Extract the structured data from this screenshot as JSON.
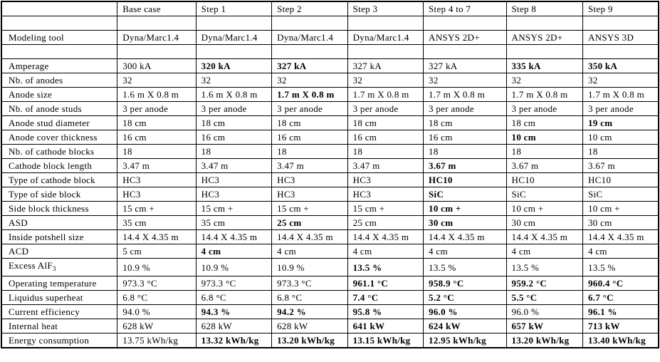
{
  "table": {
    "label_column_header": "",
    "columns": [
      "Base case",
      "Step 1",
      "Step 2",
      "Step 3",
      "Step 4 to 7",
      "Step 8",
      "Step 9"
    ],
    "rows": [
      {
        "type": "spacer",
        "label": "",
        "cells": [
          {
            "t": "",
            "b": false
          },
          {
            "t": "",
            "b": false
          },
          {
            "t": "",
            "b": false
          },
          {
            "t": "",
            "b": false
          },
          {
            "t": "",
            "b": false
          },
          {
            "t": "",
            "b": false
          },
          {
            "t": "",
            "b": false
          }
        ]
      },
      {
        "label": "Modeling tool",
        "cells": [
          {
            "t": "Dyna/Marc1.4",
            "b": false
          },
          {
            "t": "Dyna/Marc1.4",
            "b": false
          },
          {
            "t": "Dyna/Marc1.4",
            "b": false
          },
          {
            "t": "Dyna/Marc1.4",
            "b": false
          },
          {
            "t": "ANSYS 2D+",
            "b": false
          },
          {
            "t": "ANSYS 2D+",
            "b": false
          },
          {
            "t": "ANSYS 3D",
            "b": false
          }
        ]
      },
      {
        "type": "spacer",
        "label": "",
        "cells": [
          {
            "t": "",
            "b": false
          },
          {
            "t": "",
            "b": false
          },
          {
            "t": "",
            "b": false
          },
          {
            "t": "",
            "b": false
          },
          {
            "t": "",
            "b": false
          },
          {
            "t": "",
            "b": false
          },
          {
            "t": "",
            "b": false
          }
        ]
      },
      {
        "label": "Amperage",
        "cells": [
          {
            "t": "300 kA",
            "b": false
          },
          {
            "t": "320 kA",
            "b": true
          },
          {
            "t": "327 kA",
            "b": true
          },
          {
            "t": "327 kA",
            "b": false
          },
          {
            "t": "327 kA",
            "b": false
          },
          {
            "t": "335 kA",
            "b": true
          },
          {
            "t": "350 kA",
            "b": true
          }
        ]
      },
      {
        "label": "Nb. of anodes",
        "cells": [
          {
            "t": "32",
            "b": false
          },
          {
            "t": "32",
            "b": false
          },
          {
            "t": "32",
            "b": false
          },
          {
            "t": "32",
            "b": false
          },
          {
            "t": "32",
            "b": false
          },
          {
            "t": "32",
            "b": false
          },
          {
            "t": "32",
            "b": false
          }
        ]
      },
      {
        "label": "Anode size",
        "cells": [
          {
            "t": "1.6 m X 0.8 m",
            "b": false
          },
          {
            "t": "1.6 m X 0.8 m",
            "b": false
          },
          {
            "t": "1.7 m X 0.8 m",
            "b": true
          },
          {
            "t": "1.7 m X 0.8 m",
            "b": false
          },
          {
            "t": "1.7 m X 0.8 m",
            "b": false
          },
          {
            "t": "1.7 m X 0.8 m",
            "b": false
          },
          {
            "t": "1.7 m X 0.8 m",
            "b": false
          }
        ]
      },
      {
        "label": "Nb. of anode studs",
        "cells": [
          {
            "t": "3 per anode",
            "b": false
          },
          {
            "t": "3 per anode",
            "b": false
          },
          {
            "t": "3 per anode",
            "b": false
          },
          {
            "t": "3 per anode",
            "b": false
          },
          {
            "t": "3 per anode",
            "b": false
          },
          {
            "t": "3 per anode",
            "b": false
          },
          {
            "t": "3 per anode",
            "b": false
          }
        ]
      },
      {
        "label": "Anode stud diameter",
        "cells": [
          {
            "t": "18 cm",
            "b": false
          },
          {
            "t": "18 cm",
            "b": false
          },
          {
            "t": "18 cm",
            "b": false
          },
          {
            "t": "18 cm",
            "b": false
          },
          {
            "t": "18 cm",
            "b": false
          },
          {
            "t": "18 cm",
            "b": false
          },
          {
            "t": "19 cm",
            "b": true
          }
        ]
      },
      {
        "label": "Anode cover thickness",
        "cells": [
          {
            "t": "16 cm",
            "b": false
          },
          {
            "t": "16 cm",
            "b": false
          },
          {
            "t": "16 cm",
            "b": false
          },
          {
            "t": "16 cm",
            "b": false
          },
          {
            "t": "16 cm",
            "b": false
          },
          {
            "t": "10 cm",
            "b": true
          },
          {
            "t": "10 cm",
            "b": false
          }
        ]
      },
      {
        "label": "Nb. of cathode blocks",
        "cells": [
          {
            "t": "18",
            "b": false
          },
          {
            "t": "18",
            "b": false
          },
          {
            "t": "18",
            "b": false
          },
          {
            "t": "18",
            "b": false
          },
          {
            "t": "18",
            "b": false
          },
          {
            "t": "18",
            "b": false
          },
          {
            "t": "18",
            "b": false
          }
        ]
      },
      {
        "label": "Cathode block length",
        "cells": [
          {
            "t": "3.47 m",
            "b": false
          },
          {
            "t": "3.47 m",
            "b": false
          },
          {
            "t": "3.47 m",
            "b": false
          },
          {
            "t": "3.47 m",
            "b": false
          },
          {
            "t": "3.67 m",
            "b": true
          },
          {
            "t": "3.67 m",
            "b": false
          },
          {
            "t": "3.67 m",
            "b": false
          }
        ]
      },
      {
        "label": "Type of cathode block",
        "cells": [
          {
            "t": "HC3",
            "b": false
          },
          {
            "t": "HC3",
            "b": false
          },
          {
            "t": "HC3",
            "b": false
          },
          {
            "t": "HC3",
            "b": false
          },
          {
            "t": "HC10",
            "b": true
          },
          {
            "t": "HC10",
            "b": false
          },
          {
            "t": "HC10",
            "b": false
          }
        ]
      },
      {
        "label": "Type of side block",
        "cells": [
          {
            "t": "HC3",
            "b": false
          },
          {
            "t": "HC3",
            "b": false
          },
          {
            "t": "HC3",
            "b": false
          },
          {
            "t": "HC3",
            "b": false
          },
          {
            "t": "SiC",
            "b": true
          },
          {
            "t": "SiC",
            "b": false
          },
          {
            "t": "SiC",
            "b": false
          }
        ]
      },
      {
        "label": "Side block thickness",
        "cells": [
          {
            "t": "15 cm +",
            "b": false
          },
          {
            "t": "15 cm +",
            "b": false
          },
          {
            "t": "15 cm +",
            "b": false
          },
          {
            "t": "15 cm +",
            "b": false
          },
          {
            "t": "10 cm +",
            "b": true
          },
          {
            "t": "10 cm +",
            "b": false
          },
          {
            "t": "10 cm +",
            "b": false
          }
        ]
      },
      {
        "label": "ASD",
        "cells": [
          {
            "t": "35 cm",
            "b": false
          },
          {
            "t": "35 cm",
            "b": false
          },
          {
            "t": "25 cm",
            "b": true
          },
          {
            "t": "25 cm",
            "b": false
          },
          {
            "t": "30 cm",
            "b": true
          },
          {
            "t": "30 cm",
            "b": false
          },
          {
            "t": "30 cm",
            "b": false
          }
        ]
      },
      {
        "label": "Inside potshell size",
        "cells": [
          {
            "t": "14.4 X 4.35 m",
            "b": false
          },
          {
            "t": "14.4 X 4.35 m",
            "b": false
          },
          {
            "t": "14.4 X 4.35 m",
            "b": false
          },
          {
            "t": "14.4 X 4.35 m",
            "b": false
          },
          {
            "t": "14.4 X 4.35 m",
            "b": false
          },
          {
            "t": "14.4 X 4.35 m",
            "b": false
          },
          {
            "t": "14.4 X 4.35 m",
            "b": false
          }
        ]
      },
      {
        "label": "ACD",
        "cells": [
          {
            "t": "5 cm",
            "b": false
          },
          {
            "t": "4 cm",
            "b": true
          },
          {
            "t": "4 cm",
            "b": false
          },
          {
            "t": "4 cm",
            "b": false
          },
          {
            "t": "4 cm",
            "b": false
          },
          {
            "t": "4 cm",
            "b": false
          },
          {
            "t": "4 cm",
            "b": false
          }
        ]
      },
      {
        "label": "Excess AlF",
        "sub": "3",
        "cells": [
          {
            "t": "10.9 %",
            "b": false
          },
          {
            "t": "10.9 %",
            "b": false
          },
          {
            "t": "10.9 %",
            "b": false
          },
          {
            "t": "13.5 %",
            "b": true
          },
          {
            "t": "13.5 %",
            "b": false
          },
          {
            "t": "13.5 %",
            "b": false
          },
          {
            "t": "13.5 %",
            "b": false
          }
        ]
      },
      {
        "label": "Operating temperature",
        "cells": [
          {
            "t": "973.3 °C",
            "b": false
          },
          {
            "t": "973.3 °C",
            "b": false
          },
          {
            "t": "973.3 °C",
            "b": false
          },
          {
            "t": "961.1 °C",
            "b": true
          },
          {
            "t": "958.9 °C",
            "b": true
          },
          {
            "t": "959.2 °C",
            "b": true
          },
          {
            "t": "960.4 °C",
            "b": true
          }
        ]
      },
      {
        "label": "Liquidus superheat",
        "cells": [
          {
            "t": "6.8 °C",
            "b": false
          },
          {
            "t": "6.8 °C",
            "b": false
          },
          {
            "t": "6.8 °C",
            "b": false
          },
          {
            "t": "7.4 °C",
            "b": true
          },
          {
            "t": "5.2 °C",
            "b": true
          },
          {
            "t": "5.5 °C",
            "b": true
          },
          {
            "t": "6.7 °C",
            "b": true
          }
        ]
      },
      {
        "label": "Current efficiency",
        "cells": [
          {
            "t": "94.0 %",
            "b": false
          },
          {
            "t": "94.3 %",
            "b": true
          },
          {
            "t": "94.2 %",
            "b": true
          },
          {
            "t": "95.8 %",
            "b": true
          },
          {
            "t": "96.0 %",
            "b": true
          },
          {
            "t": "96.0 %",
            "b": false
          },
          {
            "t": "96.1 %",
            "b": true
          }
        ]
      },
      {
        "label": "Internal heat",
        "cells": [
          {
            "t": "628 kW",
            "b": false
          },
          {
            "t": "628 kW",
            "b": false
          },
          {
            "t": "628 kW",
            "b": false
          },
          {
            "t": "641 kW",
            "b": true
          },
          {
            "t": "624 kW",
            "b": true
          },
          {
            "t": "657 kW",
            "b": true
          },
          {
            "t": "713 kW",
            "b": true
          }
        ]
      },
      {
        "label": "Energy consumption",
        "cells": [
          {
            "t": "13.75 kWh/kg",
            "b": false
          },
          {
            "t": "13.32 kWh/kg",
            "b": true
          },
          {
            "t": "13.20 kWh/kg",
            "b": true
          },
          {
            "t": "13.15 kWh/kg",
            "b": true
          },
          {
            "t": "12.95 kWh/kg",
            "b": true
          },
          {
            "t": "13.20 kWh/kg",
            "b": true
          },
          {
            "t": "13.40 kWh/kg",
            "b": true
          }
        ]
      }
    ]
  }
}
